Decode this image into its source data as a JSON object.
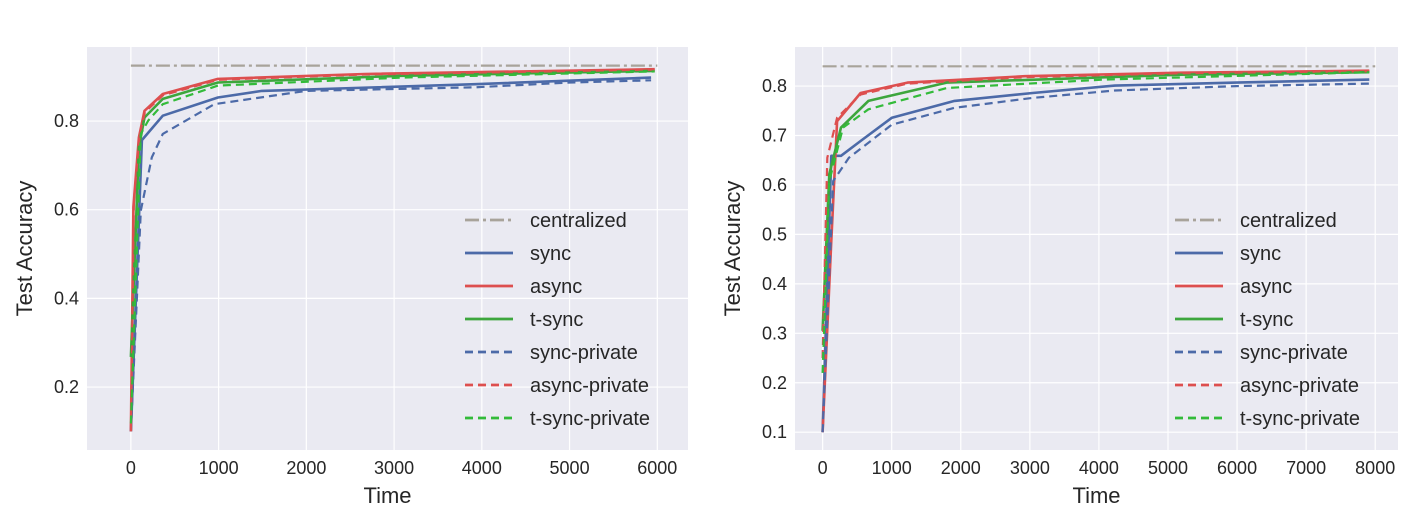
{
  "chart_data": [
    {
      "type": "line",
      "xlabel": "Time",
      "ylabel": "Test Accuracy",
      "xlim": [
        -500,
        6350
      ],
      "ylim": [
        0.058,
        0.967
      ],
      "xticks": [
        0,
        1000,
        2000,
        3000,
        4000,
        5000,
        6000
      ],
      "yticks": [
        0.2,
        0.4,
        0.6,
        0.8
      ],
      "grid": true,
      "legend": "center-right",
      "series": [
        {
          "name": "centralized",
          "color": "#a8a39a",
          "style": "dashdot",
          "x": [
            0,
            6000
          ],
          "y": [
            0.925,
            0.925
          ]
        },
        {
          "name": "sync",
          "color": "#4c6aa8",
          "style": "solid",
          "x": [
            0,
            126,
            364,
            992,
            1494,
            3921,
            5929
          ],
          "y": [
            0.1,
            0.757,
            0.812,
            0.853,
            0.868,
            0.883,
            0.898
          ]
        },
        {
          "name": "async",
          "color": "#dd4f4f",
          "style": "solid",
          "x": [
            0,
            29,
            92,
            155,
            364,
            992,
            2665,
            5971
          ],
          "y": [
            0.1,
            0.606,
            0.763,
            0.823,
            0.861,
            0.895,
            0.906,
            0.917
          ]
        },
        {
          "name": "t-sync",
          "color": "#3da63d",
          "style": "solid",
          "x": [
            0,
            92,
            155,
            364,
            992,
            3084,
            5971
          ],
          "y": [
            0.268,
            0.741,
            0.808,
            0.85,
            0.887,
            0.902,
            0.913
          ]
        },
        {
          "name": "sync-private",
          "color": "#4c6aa8",
          "style": "dashed",
          "x": [
            0,
            113,
            238,
            364,
            950,
            1996,
            3921,
            5008,
            5929
          ],
          "y": [
            0.1,
            0.598,
            0.718,
            0.771,
            0.838,
            0.868,
            0.876,
            0.887,
            0.892
          ]
        },
        {
          "name": "async-private",
          "color": "#dd4f4f",
          "style": "dashed",
          "x": [
            0,
            35,
            100,
            160,
            364,
            992,
            2665,
            5971
          ],
          "y": [
            0.1,
            0.62,
            0.77,
            0.82,
            0.858,
            0.893,
            0.905,
            0.916
          ]
        },
        {
          "name": "t-sync-private",
          "color": "#33bb3a",
          "style": "dashed",
          "x": [
            0,
            113,
            197,
            364,
            992,
            3084,
            5971
          ],
          "y": [
            0.118,
            0.771,
            0.801,
            0.838,
            0.88,
            0.898,
            0.912
          ]
        }
      ]
    },
    {
      "type": "line",
      "xlabel": "Time",
      "ylabel": "Test Accuracy",
      "xlim": [
        -400,
        8330
      ],
      "ylim": [
        0.064,
        0.879
      ],
      "xticks": [
        0,
        1000,
        2000,
        3000,
        4000,
        5000,
        6000,
        7000,
        8000
      ],
      "yticks": [
        0.1,
        0.2,
        0.3,
        0.4,
        0.5,
        0.6,
        0.7,
        0.8
      ],
      "grid": true,
      "legend": "center-right",
      "series": [
        {
          "name": "centralized",
          "color": "#a8a39a",
          "style": "dashdot",
          "x": [
            0,
            8000
          ],
          "y": [
            0.84,
            0.84
          ]
        },
        {
          "name": "sync",
          "color": "#4c6aa8",
          "style": "solid",
          "x": [
            0,
            125,
            266,
            550,
            1003,
            1909,
            3042,
            4232,
            5989,
            7915
          ],
          "y": [
            0.1,
            0.659,
            0.659,
            0.689,
            0.736,
            0.77,
            0.786,
            0.801,
            0.807,
            0.813
          ]
        },
        {
          "name": "async",
          "color": "#dd4f4f",
          "style": "solid",
          "x": [
            0,
            125,
            210,
            550,
            1229,
            2929,
            5195,
            7915
          ],
          "y": [
            0.1,
            0.487,
            0.729,
            0.786,
            0.807,
            0.82,
            0.827,
            0.831
          ]
        },
        {
          "name": "t-sync",
          "color": "#3da63d",
          "style": "solid",
          "x": [
            0,
            96,
            266,
            663,
            1796,
            5195,
            7915
          ],
          "y": [
            0.305,
            0.622,
            0.716,
            0.77,
            0.807,
            0.823,
            0.828
          ]
        },
        {
          "name": "sync-private",
          "color": "#4c6aa8",
          "style": "dashed",
          "x": [
            0,
            153,
            380,
            1003,
            1909,
            3042,
            4232,
            5989,
            7915
          ],
          "y": [
            0.1,
            0.608,
            0.655,
            0.722,
            0.756,
            0.776,
            0.791,
            0.8,
            0.805
          ]
        },
        {
          "name": "async-private",
          "color": "#dd4f4f",
          "style": "dashed",
          "x": [
            0,
            68,
            210,
            550,
            1229,
            2929,
            5195,
            7915
          ],
          "y": [
            0.25,
            0.655,
            0.736,
            0.783,
            0.805,
            0.818,
            0.826,
            0.83
          ]
        },
        {
          "name": "t-sync-private",
          "color": "#33bb3a",
          "style": "dashed",
          "x": [
            0,
            96,
            295,
            663,
            1796,
            4062,
            7915
          ],
          "y": [
            0.22,
            0.608,
            0.716,
            0.753,
            0.796,
            0.813,
            0.828
          ]
        }
      ]
    }
  ],
  "style": {
    "background": "#eaeaf2",
    "grid": "#ffffff"
  }
}
